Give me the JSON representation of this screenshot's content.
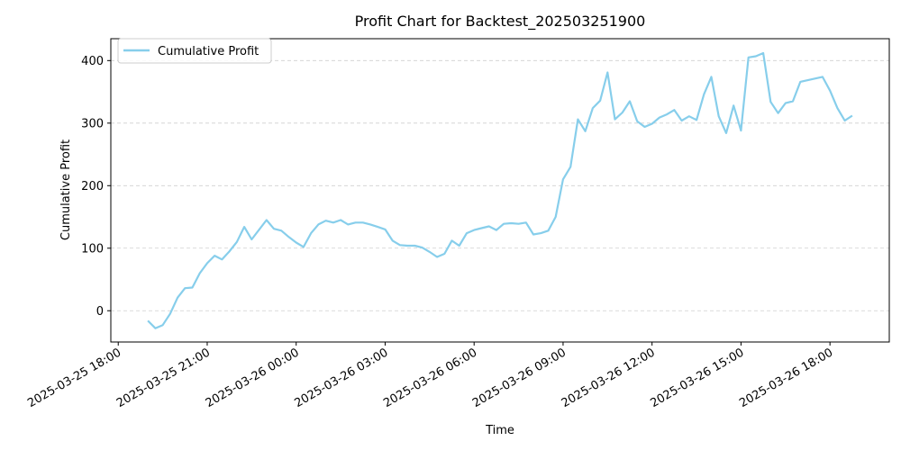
{
  "chart_data": {
    "type": "line",
    "title": "Profit Chart for Backtest_202503251900",
    "xlabel": "Time",
    "ylabel": "Cumulative Profit",
    "ylim": [
      -50,
      435
    ],
    "xlim": [
      "2025-03-25 17:45",
      "2025-03-26 20:00"
    ],
    "y_ticks": [
      0,
      100,
      200,
      300,
      400
    ],
    "x_ticks": [
      "2025-03-25 18:00",
      "2025-03-25 21:00",
      "2025-03-26 00:00",
      "2025-03-26 03:00",
      "2025-03-26 06:00",
      "2025-03-26 09:00",
      "2025-03-26 12:00",
      "2025-03-26 15:00",
      "2025-03-26 18:00"
    ],
    "grid": "y-dashed",
    "legend_position": "top-left",
    "line_color": "#87ceeb",
    "series": [
      {
        "name": "Cumulative Profit",
        "x": [
          "2025-03-25 19:00",
          "2025-03-25 19:15",
          "2025-03-25 19:30",
          "2025-03-25 19:45",
          "2025-03-25 20:00",
          "2025-03-25 20:15",
          "2025-03-25 20:30",
          "2025-03-25 20:45",
          "2025-03-25 21:00",
          "2025-03-25 21:15",
          "2025-03-25 21:30",
          "2025-03-25 21:45",
          "2025-03-25 22:00",
          "2025-03-25 22:15",
          "2025-03-25 22:30",
          "2025-03-25 23:00",
          "2025-03-25 23:15",
          "2025-03-25 23:30",
          "2025-03-25 23:45",
          "2025-03-26 00:00",
          "2025-03-26 00:15",
          "2025-03-26 00:30",
          "2025-03-26 00:45",
          "2025-03-26 01:00",
          "2025-03-26 01:15",
          "2025-03-26 01:30",
          "2025-03-26 01:45",
          "2025-03-26 02:00",
          "2025-03-26 02:15",
          "2025-03-26 02:30",
          "2025-03-26 02:45",
          "2025-03-26 03:00",
          "2025-03-26 03:15",
          "2025-03-26 03:30",
          "2025-03-26 03:45",
          "2025-03-26 04:00",
          "2025-03-26 04:15",
          "2025-03-26 04:30",
          "2025-03-26 04:45",
          "2025-03-26 05:00",
          "2025-03-26 05:15",
          "2025-03-26 05:30",
          "2025-03-26 05:45",
          "2025-03-26 06:00",
          "2025-03-26 06:15",
          "2025-03-26 06:30",
          "2025-03-26 06:45",
          "2025-03-26 07:00",
          "2025-03-26 07:15",
          "2025-03-26 07:30",
          "2025-03-26 07:45",
          "2025-03-26 08:00",
          "2025-03-26 08:15",
          "2025-03-26 08:30",
          "2025-03-26 08:45",
          "2025-03-26 09:00",
          "2025-03-26 09:15",
          "2025-03-26 09:30",
          "2025-03-26 09:45",
          "2025-03-26 10:00",
          "2025-03-26 10:15",
          "2025-03-26 10:30",
          "2025-03-26 10:45",
          "2025-03-26 11:00",
          "2025-03-26 11:15",
          "2025-03-26 11:30",
          "2025-03-26 11:45",
          "2025-03-26 12:00",
          "2025-03-26 12:15",
          "2025-03-26 12:30",
          "2025-03-26 12:45",
          "2025-03-26 13:00",
          "2025-03-26 13:15",
          "2025-03-26 13:30",
          "2025-03-26 13:45",
          "2025-03-26 14:00",
          "2025-03-26 14:15",
          "2025-03-26 14:30",
          "2025-03-26 14:45",
          "2025-03-26 15:00",
          "2025-03-26 15:15",
          "2025-03-26 15:30",
          "2025-03-26 15:45",
          "2025-03-26 16:00",
          "2025-03-26 16:15",
          "2025-03-26 16:30",
          "2025-03-26 16:45",
          "2025-03-26 17:00",
          "2025-03-26 17:45",
          "2025-03-26 18:00",
          "2025-03-26 18:15",
          "2025-03-26 18:30",
          "2025-03-26 18:45"
        ],
        "y": [
          -16,
          -28,
          -23,
          -5,
          21,
          36,
          37,
          60,
          76,
          88,
          82,
          95,
          110,
          134,
          114,
          145,
          131,
          128,
          118,
          109,
          102,
          124,
          138,
          144,
          141,
          145,
          138,
          141,
          141,
          138,
          134,
          130,
          112,
          105,
          104,
          104,
          101,
          94,
          86,
          91,
          112,
          104,
          124,
          129,
          132,
          135,
          129,
          139,
          140,
          139,
          141,
          122,
          124,
          128,
          150,
          210,
          230,
          306,
          287,
          324,
          336,
          381,
          306,
          317,
          335,
          303,
          294,
          299,
          309,
          314,
          321,
          304,
          311,
          305,
          346,
          374,
          311,
          284,
          328,
          288,
          405,
          407,
          412,
          334,
          316,
          332,
          335,
          366,
          374,
          352,
          324,
          304,
          312
        ]
      }
    ]
  }
}
